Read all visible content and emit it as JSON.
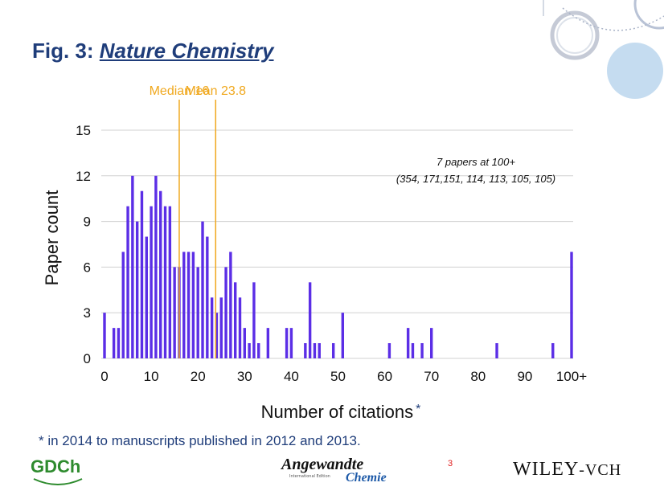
{
  "slide": {
    "title_prefix": "Fig. 3: ",
    "title_journal": "Nature Chemistry",
    "footnote": "* in 2014 to manuscripts published in 2012 and 2013.",
    "page_number": "3",
    "logos": {
      "gdch": "GDCh",
      "angewandte": "Angewandte",
      "chemie": "Chemie",
      "angewandte_edition": "International Edition",
      "wiley": "WILEY",
      "wiley_suffix": "-VCH"
    },
    "colors": {
      "title": "#1f3d7a",
      "bars": "#5b2ee6",
      "reference_lines": "#f0a81e",
      "gridlines": "#d0d0d0",
      "decor": "#c5dcf0"
    }
  },
  "chart_data": {
    "type": "bar",
    "xlabel": "Number of citations",
    "xlabel_marker": "*",
    "ylabel": "Paper count",
    "ylim": [
      0,
      15
    ],
    "yticks": [
      0,
      3,
      6,
      9,
      12,
      15
    ],
    "xticks": [
      "0",
      "10",
      "20",
      "30",
      "40",
      "50",
      "60",
      "70",
      "80",
      "90",
      "100+"
    ],
    "grid": true,
    "x": [
      0,
      2,
      3,
      4,
      5,
      6,
      7,
      8,
      9,
      10,
      11,
      12,
      13,
      14,
      15,
      16,
      17,
      18,
      19,
      20,
      21,
      22,
      23,
      24,
      25,
      26,
      27,
      28,
      29,
      30,
      31,
      32,
      33,
      35,
      39,
      40,
      43,
      44,
      45,
      46,
      49,
      51,
      61,
      65,
      66,
      68,
      70,
      84,
      96,
      100
    ],
    "values": [
      3,
      2,
      2,
      7,
      10,
      12,
      9,
      11,
      8,
      10,
      12,
      11,
      10,
      10,
      6,
      6,
      7,
      7,
      7,
      6,
      9,
      8,
      4,
      3,
      4,
      6,
      7,
      5,
      4,
      2,
      1,
      5,
      1,
      2,
      2,
      2,
      1,
      5,
      1,
      1,
      1,
      3,
      1,
      2,
      1,
      1,
      2,
      1,
      1,
      7
    ],
    "reference_lines": [
      {
        "label": "Median 16",
        "x": 16
      },
      {
        "label": "Mean 23.8",
        "x": 23.8
      }
    ],
    "annotation": {
      "line1": "7 papers at 100+",
      "line2": "(354, 171,151, 114, 113, 105, 105)"
    }
  }
}
